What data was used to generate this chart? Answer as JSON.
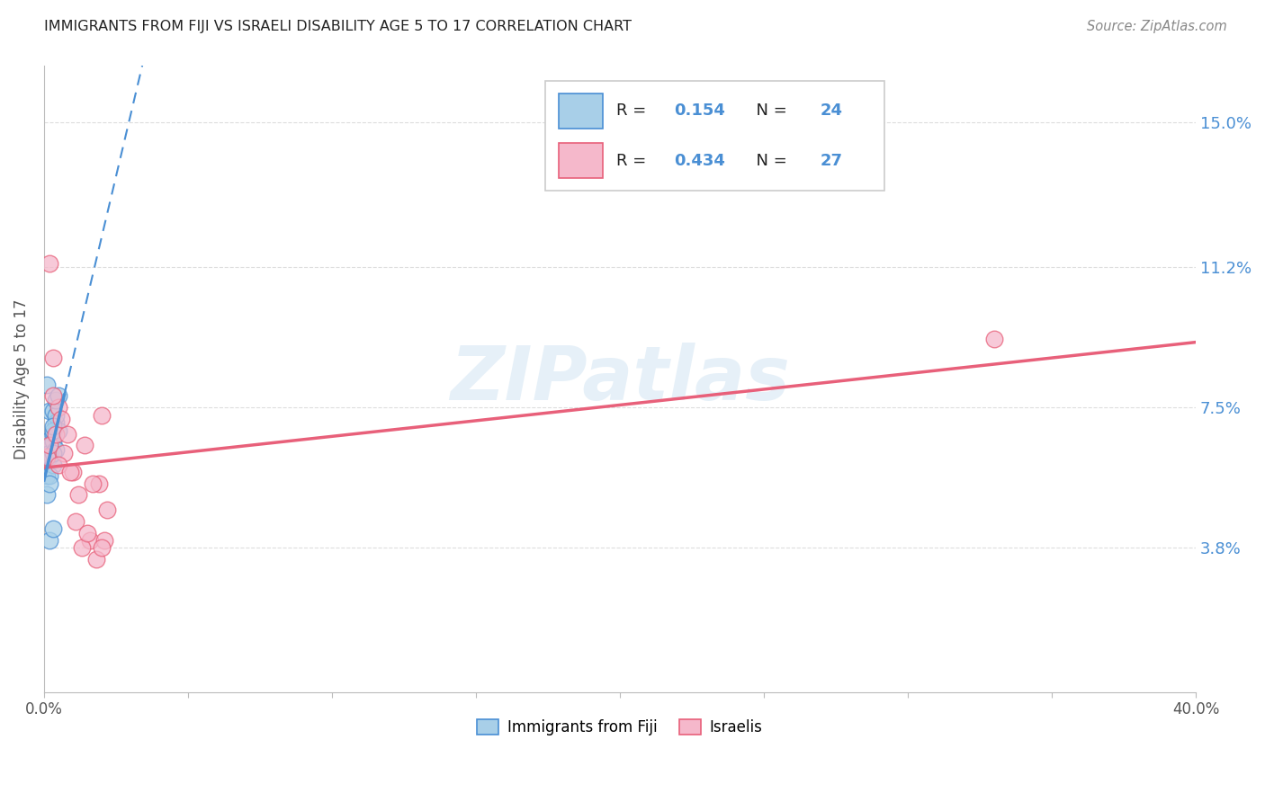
{
  "title": "IMMIGRANTS FROM FIJI VS ISRAELI DISABILITY AGE 5 TO 17 CORRELATION CHART",
  "source": "Source: ZipAtlas.com",
  "ylabel": "Disability Age 5 to 17",
  "xlim": [
    0.0,
    0.4
  ],
  "ylim": [
    0.0,
    0.165
  ],
  "ytick_labels_right": [
    "15.0%",
    "11.2%",
    "7.5%",
    "3.8%"
  ],
  "ytick_vals_right": [
    0.15,
    0.112,
    0.075,
    0.038
  ],
  "fiji_color": "#a8cfe8",
  "israeli_color": "#f5b8cb",
  "fiji_line_color": "#4a8fd4",
  "israeli_line_color": "#e8607a",
  "fiji_scatter_x": [
    0.001,
    0.002,
    0.001,
    0.003,
    0.002,
    0.003,
    0.004,
    0.005,
    0.003,
    0.004,
    0.002,
    0.001,
    0.003,
    0.004,
    0.002,
    0.004,
    0.003,
    0.001,
    0.003,
    0.002,
    0.005,
    0.003,
    0.002,
    0.003
  ],
  "fiji_scatter_y": [
    0.081,
    0.074,
    0.066,
    0.074,
    0.063,
    0.068,
    0.071,
    0.069,
    0.066,
    0.064,
    0.062,
    0.057,
    0.06,
    0.073,
    0.057,
    0.077,
    0.069,
    0.052,
    0.07,
    0.055,
    0.078,
    0.063,
    0.04,
    0.043
  ],
  "israeli_scatter_x": [
    0.001,
    0.003,
    0.002,
    0.004,
    0.005,
    0.007,
    0.008,
    0.01,
    0.012,
    0.014,
    0.016,
    0.018,
    0.019,
    0.021,
    0.02,
    0.022,
    0.002,
    0.003,
    0.005,
    0.006,
    0.009,
    0.011,
    0.013,
    0.015,
    0.017,
    0.02,
    0.33
  ],
  "israeli_scatter_y": [
    0.062,
    0.088,
    0.065,
    0.068,
    0.075,
    0.063,
    0.068,
    0.058,
    0.052,
    0.065,
    0.04,
    0.035,
    0.055,
    0.04,
    0.073,
    0.048,
    0.113,
    0.078,
    0.06,
    0.072,
    0.058,
    0.045,
    0.038,
    0.042,
    0.055,
    0.038,
    0.093
  ],
  "fiji_R": 0.154,
  "fiji_N": 24,
  "israeli_R": 0.434,
  "israeli_N": 27,
  "watermark": "ZIPatlas",
  "grid_color": "#dddddd",
  "value_color": "#4a8fd4",
  "label_color": "#333333",
  "right_axis_color": "#4a8fd4"
}
